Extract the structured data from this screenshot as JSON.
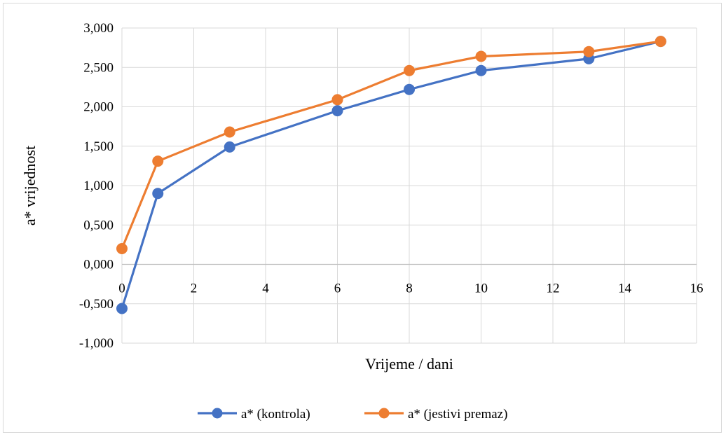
{
  "chart_data": {
    "type": "line",
    "title": "",
    "xlabel": "Vrijeme / dani",
    "ylabel": "a* vrijednost",
    "xlim": [
      0,
      16
    ],
    "ylim": [
      -1.0,
      3.0
    ],
    "x_ticks": [
      0,
      2,
      4,
      6,
      8,
      10,
      12,
      14,
      16
    ],
    "y_ticks": [
      -1.0,
      -0.5,
      0.0,
      0.5,
      1.0,
      1.5,
      2.0,
      2.5,
      3.0
    ],
    "x_tick_labels": [
      "0",
      "2",
      "4",
      "6",
      "8",
      "10",
      "12",
      "14",
      "16"
    ],
    "y_tick_labels": [
      "-1,000",
      "-0,500",
      "0,000",
      "0,500",
      "1,000",
      "1,500",
      "2,000",
      "2,500",
      "3,000"
    ],
    "grid": true,
    "legend_position": "bottom",
    "x": [
      0,
      1,
      3,
      6,
      8,
      10,
      13,
      15
    ],
    "series": [
      {
        "name": "a* (kontrola)",
        "color": "#4472C4",
        "values": [
          -0.56,
          0.9,
          1.49,
          1.95,
          2.22,
          2.46,
          2.61,
          2.83
        ]
      },
      {
        "name": "a* (jestivi premaz)",
        "color": "#ED7D31",
        "values": [
          0.2,
          1.31,
          1.68,
          2.09,
          2.46,
          2.64,
          2.7,
          2.83
        ]
      }
    ]
  }
}
